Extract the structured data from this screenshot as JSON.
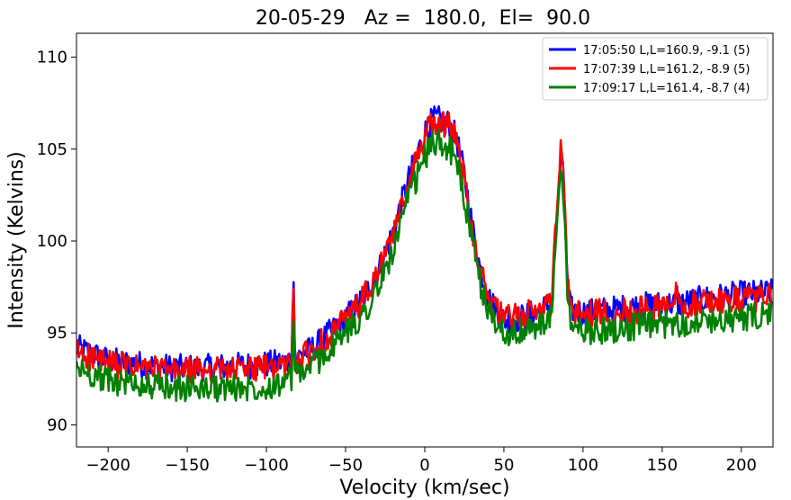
{
  "chart_data": {
    "type": "line",
    "title": "20-05-29   Az =  180.0,  El=  90.0",
    "xlabel": "Velocity (km/sec)",
    "ylabel": "Intensity (Kelvins)",
    "xlim": [
      -220,
      220
    ],
    "ylim": [
      88.8,
      111.3
    ],
    "xticks": [
      -200,
      -150,
      -100,
      -50,
      0,
      50,
      100,
      150,
      200
    ],
    "xtick_labels": [
      "−200",
      "−150",
      "−100",
      "−50",
      "0",
      "50",
      "100",
      "150",
      "200"
    ],
    "yticks": [
      90,
      95,
      100,
      105,
      110
    ],
    "ytick_labels": [
      "90",
      "95",
      "100",
      "105",
      "110"
    ],
    "grid": false,
    "legend_position": "top-right",
    "series": [
      {
        "name": "17:05:50 L,L=160.9, -9.1 (5)",
        "color": "#0000ff",
        "points": [
          [
            -220,
            94.2
          ],
          [
            -200,
            93.5
          ],
          [
            -180,
            93.3
          ],
          [
            -160,
            93.1
          ],
          [
            -140,
            93.1
          ],
          [
            -120,
            93.2
          ],
          [
            -100,
            93.3
          ],
          [
            -90,
            93.4
          ],
          [
            -84,
            93.5
          ],
          [
            -83,
            98.8
          ],
          [
            -82,
            93.6
          ],
          [
            -70,
            94.2
          ],
          [
            -60,
            95.0
          ],
          [
            -50,
            95.8
          ],
          [
            -40,
            96.8
          ],
          [
            -30,
            98.2
          ],
          [
            -20,
            100.5
          ],
          [
            -10,
            103.4
          ],
          [
            0,
            105.9
          ],
          [
            5,
            106.6
          ],
          [
            10,
            106.6
          ],
          [
            15,
            106.4
          ],
          [
            20,
            105.6
          ],
          [
            25,
            103.6
          ],
          [
            30,
            100.8
          ],
          [
            35,
            98.5
          ],
          [
            40,
            97.0
          ],
          [
            45,
            96.2
          ],
          [
            50,
            95.7
          ],
          [
            60,
            95.8
          ],
          [
            70,
            96.1
          ],
          [
            80,
            96.6
          ],
          [
            84,
            102.0
          ],
          [
            86,
            104.6
          ],
          [
            88,
            103.0
          ],
          [
            90,
            97.8
          ],
          [
            92,
            96.3
          ],
          [
            100,
            96.1
          ],
          [
            120,
            96.3
          ],
          [
            140,
            96.5
          ],
          [
            158,
            96.6
          ],
          [
            159,
            97.3
          ],
          [
            160,
            96.6
          ],
          [
            180,
            96.9
          ],
          [
            200,
            97.1
          ],
          [
            220,
            97.2
          ]
        ]
      },
      {
        "name": "17:07:39 L,L=161.2, -8.9 (5)",
        "color": "#ff0000",
        "points": [
          [
            -220,
            94.0
          ],
          [
            -200,
            93.3
          ],
          [
            -180,
            93.1
          ],
          [
            -160,
            92.9
          ],
          [
            -140,
            93.0
          ],
          [
            -120,
            93.0
          ],
          [
            -100,
            93.1
          ],
          [
            -90,
            93.2
          ],
          [
            -84,
            93.3
          ],
          [
            -83,
            98.4
          ],
          [
            -82,
            93.4
          ],
          [
            -70,
            94.1
          ],
          [
            -60,
            94.9
          ],
          [
            -50,
            95.7
          ],
          [
            -40,
            96.7
          ],
          [
            -30,
            98.1
          ],
          [
            -20,
            100.3
          ],
          [
            -10,
            103.2
          ],
          [
            0,
            105.7
          ],
          [
            5,
            106.4
          ],
          [
            10,
            106.5
          ],
          [
            15,
            106.3
          ],
          [
            20,
            105.5
          ],
          [
            25,
            103.5
          ],
          [
            30,
            100.7
          ],
          [
            35,
            98.5
          ],
          [
            40,
            97.0
          ],
          [
            45,
            96.2
          ],
          [
            50,
            95.8
          ],
          [
            60,
            95.9
          ],
          [
            70,
            96.2
          ],
          [
            80,
            96.7
          ],
          [
            84,
            102.3
          ],
          [
            86,
            105.0
          ],
          [
            88,
            103.2
          ],
          [
            90,
            97.8
          ],
          [
            92,
            96.2
          ],
          [
            100,
            96.0
          ],
          [
            120,
            96.2
          ],
          [
            140,
            96.3
          ],
          [
            158,
            96.5
          ],
          [
            159,
            98.2
          ],
          [
            160,
            96.5
          ],
          [
            180,
            96.7
          ],
          [
            200,
            96.8
          ],
          [
            220,
            97.0
          ]
        ]
      },
      {
        "name": "17:09:17 L,L=161.4, -8.7 (4)",
        "color": "#008000",
        "points": [
          [
            -220,
            93.1
          ],
          [
            -200,
            92.4
          ],
          [
            -180,
            92.2
          ],
          [
            -160,
            92.0
          ],
          [
            -140,
            92.0
          ],
          [
            -120,
            92.0
          ],
          [
            -100,
            92.1
          ],
          [
            -90,
            92.3
          ],
          [
            -84,
            92.5
          ],
          [
            -83,
            96.4
          ],
          [
            -82,
            92.6
          ],
          [
            -70,
            93.3
          ],
          [
            -60,
            94.1
          ],
          [
            -50,
            95.0
          ],
          [
            -40,
            95.9
          ],
          [
            -30,
            97.3
          ],
          [
            -20,
            99.5
          ],
          [
            -10,
            102.3
          ],
          [
            0,
            104.6
          ],
          [
            5,
            105.3
          ],
          [
            10,
            105.4
          ],
          [
            15,
            105.1
          ],
          [
            20,
            104.3
          ],
          [
            25,
            102.4
          ],
          [
            30,
            99.8
          ],
          [
            35,
            97.7
          ],
          [
            40,
            96.3
          ],
          [
            45,
            95.5
          ],
          [
            50,
            95.1
          ],
          [
            60,
            95.0
          ],
          [
            70,
            95.3
          ],
          [
            80,
            95.7
          ],
          [
            84,
            101.6
          ],
          [
            86,
            104.3
          ],
          [
            88,
            102.2
          ],
          [
            90,
            96.8
          ],
          [
            92,
            95.4
          ],
          [
            100,
            95.1
          ],
          [
            120,
            95.2
          ],
          [
            140,
            95.4
          ],
          [
            158,
            95.5
          ],
          [
            159,
            96.6
          ],
          [
            160,
            95.5
          ],
          [
            180,
            95.7
          ],
          [
            200,
            95.8
          ],
          [
            220,
            96.0
          ]
        ]
      }
    ]
  }
}
